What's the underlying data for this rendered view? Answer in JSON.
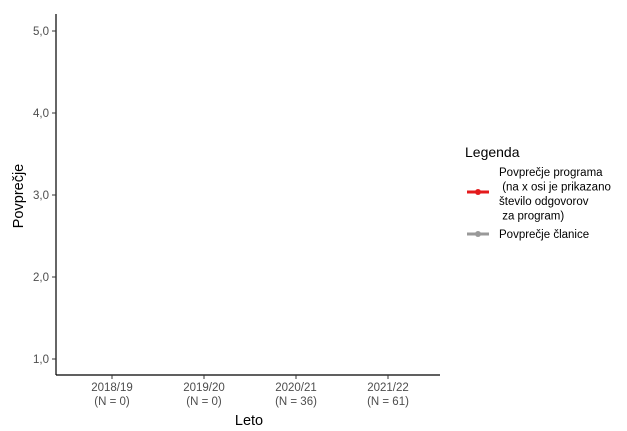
{
  "chart_data": {
    "type": "line",
    "title": "",
    "xlabel": "Leto",
    "ylabel": "Povprečje",
    "categories": [
      "2018/19",
      "2019/20",
      "2020/21",
      "2021/22"
    ],
    "category_sublabels": [
      "(N = 0)",
      "(N = 0)",
      "(N = 36)",
      "(N = 61)"
    ],
    "yticks": [
      1.0,
      2.0,
      3.0,
      4.0,
      5.0
    ],
    "ytick_labels": [
      "1,0",
      "2,0",
      "3,0",
      "4,0",
      "5,0"
    ],
    "ylim": [
      0.8,
      5.2
    ],
    "grid": false,
    "legend_position": "right",
    "legend": {
      "title": "Legenda",
      "entries": [
        {
          "lines": [
            "Povprečje programa",
            " (na x osi je prikazano",
            "število odgovorov",
            " za program)"
          ],
          "color": "#e41a1c"
        },
        {
          "lines": [
            "Povprečje članice"
          ],
          "color": "#999999"
        }
      ]
    },
    "series": [
      {
        "values": [
          null,
          null,
          null,
          null
        ],
        "color": "#e41a1c"
      },
      {
        "values": [
          null,
          null,
          null,
          null
        ],
        "color": "#999999"
      }
    ]
  }
}
